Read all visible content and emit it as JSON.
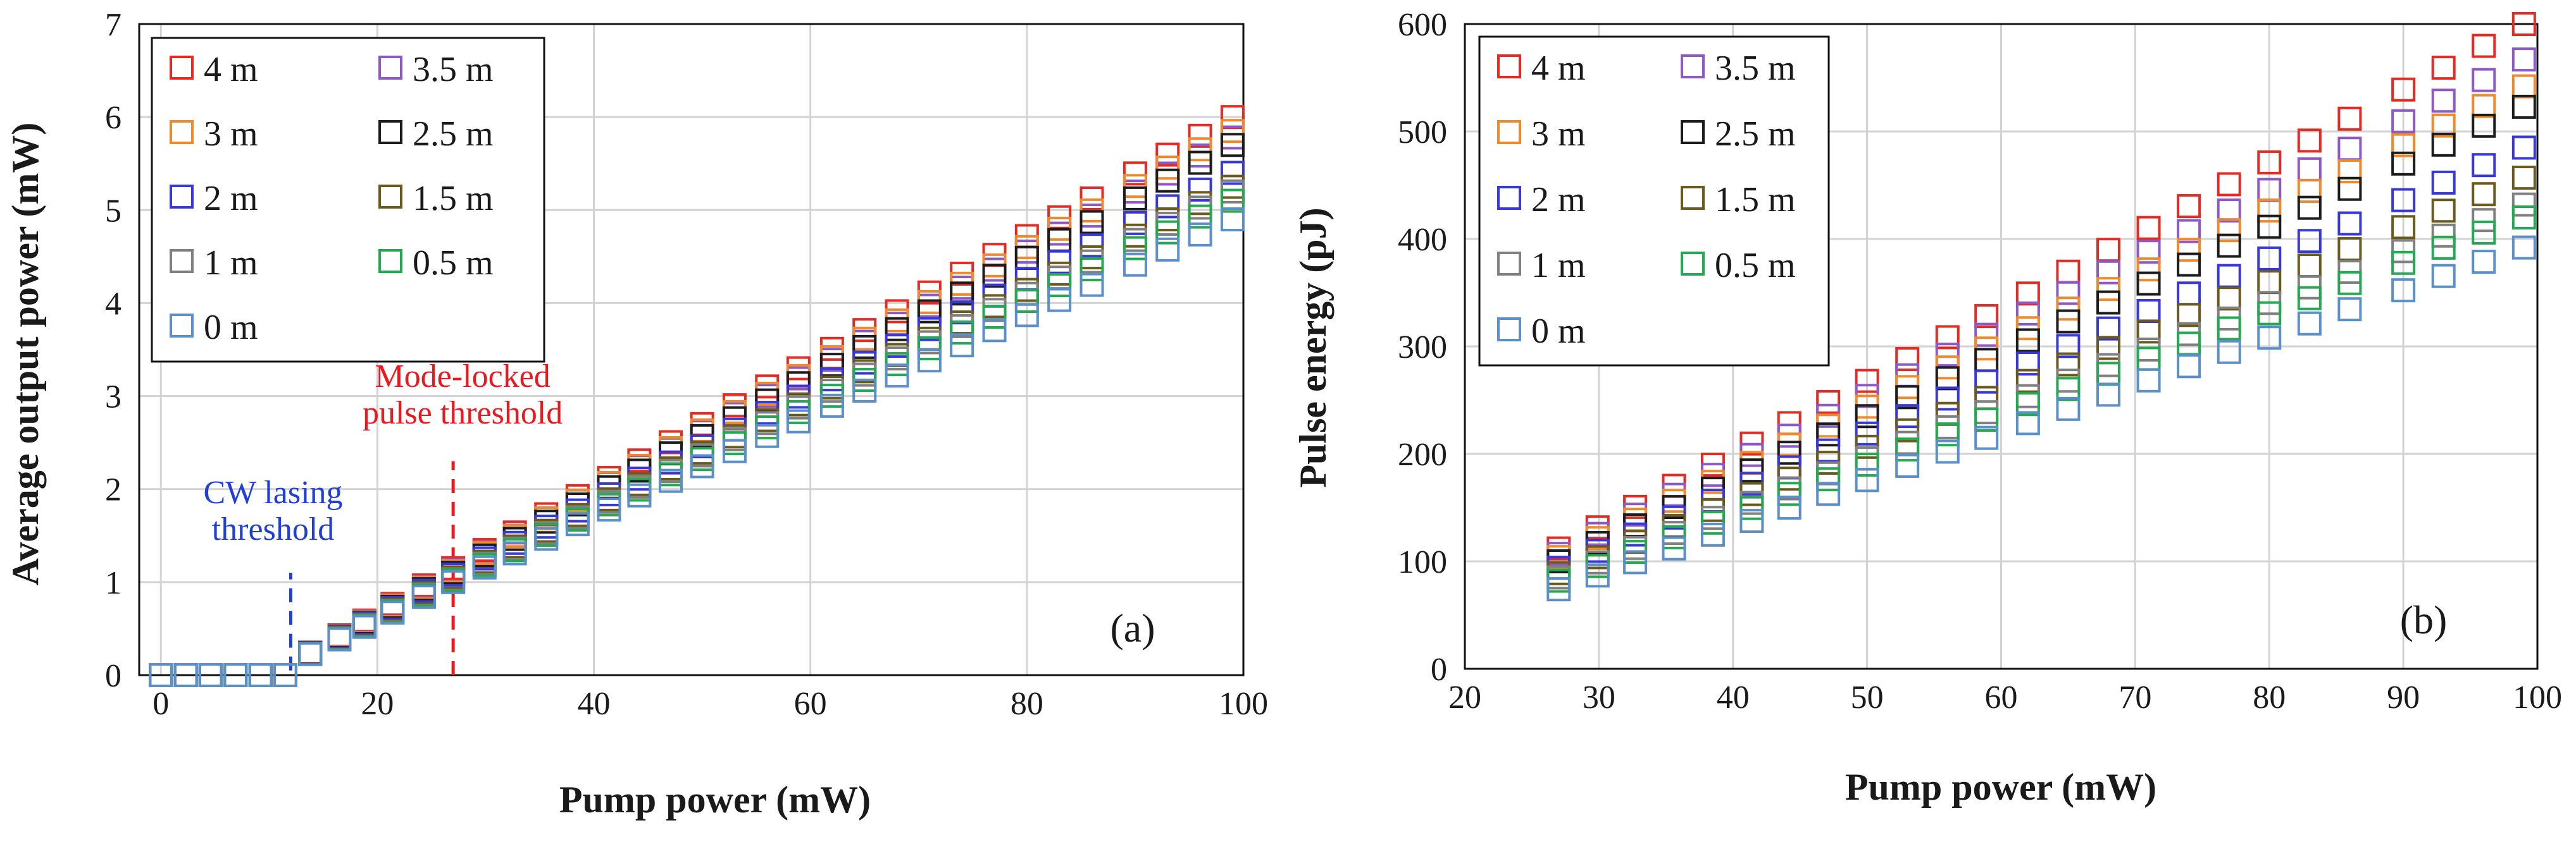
{
  "chart_data": [
    {
      "type": "scatter",
      "panel_label": "(a)",
      "xlabel": "Pump power (mW)",
      "ylabel": "Average output power (mW)",
      "xlim": [
        -2,
        100
      ],
      "ylim": [
        0,
        7
      ],
      "xticks": [
        0,
        20,
        40,
        60,
        80,
        100
      ],
      "xtick_labels": [
        "0",
        "20",
        "40",
        "60",
        "80",
        "100"
      ],
      "yticks": [
        0,
        1,
        2,
        3,
        4,
        5,
        6,
        7
      ],
      "ytick_labels": [
        "0",
        "1",
        "2",
        "3",
        "4",
        "5",
        "6",
        "7"
      ],
      "grid": true,
      "legend_position": "top-left",
      "x": [
        0,
        2.3,
        4.6,
        6.9,
        9.2,
        11.5,
        13.8,
        16.5,
        18.8,
        21.4,
        24.3,
        27.0,
        29.9,
        32.7,
        35.6,
        38.5,
        41.4,
        44.2,
        47.1,
        50.0,
        53.0,
        56.0,
        58.9,
        62.0,
        65.0,
        68.0,
        71.0,
        74.0,
        77.0,
        80.0,
        83.0,
        86.0,
        90.0,
        93.0,
        96.0,
        99.0
      ],
      "threshold_values": {
        "cw_lasing": 12,
        "mode_locked": 27
      },
      "annotations": [
        {
          "text_lines": [
            "CW lasing",
            "threshold"
          ],
          "color": "#1f3fd8",
          "x": 12
        },
        {
          "text_lines": [
            "Mode-locked",
            "pulse threshold"
          ],
          "color": "#e8191f",
          "x": 27
        }
      ],
      "series": [
        {
          "name": "4 m",
          "color": "#e32b24",
          "start": 0.12,
          "slope": 0.0816,
          "ystart": 1.15,
          "yend": 6.0
        },
        {
          "name": "3.5 m",
          "color": "#8e59c4",
          "start": 0.12,
          "slope": 0.0775,
          "ystart": 1.13,
          "yend": 5.78
        },
        {
          "name": "3 m",
          "color": "#ee8a2e",
          "start": 0.12,
          "slope": 0.078,
          "ystart": 1.12,
          "yend": 5.85
        },
        {
          "name": "2.5 m",
          "color": "#1c1c1c",
          "start": 0.12,
          "slope": 0.076,
          "ystart": 1.1,
          "yend": 5.7
        },
        {
          "name": "2 m",
          "color": "#3838d8",
          "start": 0.12,
          "slope": 0.0716,
          "ystart": 1.08,
          "yend": 5.4
        },
        {
          "name": "1.5 m",
          "color": "#6a5a1e",
          "start": 0.12,
          "slope": 0.0702,
          "ystart": 1.05,
          "yend": 5.25
        },
        {
          "name": "1 m",
          "color": "#808080",
          "start": 0.12,
          "slope": 0.0697,
          "ystart": 1.03,
          "yend": 5.2
        },
        {
          "name": "0.5 m",
          "color": "#24a852",
          "start": 0.12,
          "slope": 0.068,
          "ystart": 1.02,
          "yend": 5.1
        },
        {
          "name": "0 m",
          "color": "#5b8fc9",
          "start": 0.12,
          "slope": 0.0663,
          "ystart": 1.0,
          "yend": 4.9
        }
      ]
    },
    {
      "type": "scatter",
      "panel_label": "(b)",
      "xlabel": "Pump power (mW)",
      "ylabel": "Pulse energy (pJ)",
      "xlim": [
        20,
        100
      ],
      "ylim": [
        0,
        600
      ],
      "xticks": [
        20,
        30,
        40,
        50,
        60,
        70,
        80,
        90,
        100
      ],
      "xtick_labels": [
        "20",
        "30",
        "40",
        "50",
        "60",
        "70",
        "80",
        "90",
        "100"
      ],
      "yticks": [
        0,
        100,
        200,
        300,
        400,
        500,
        600
      ],
      "ytick_labels": [
        "0",
        "100",
        "200",
        "300",
        "400",
        "500",
        "600"
      ],
      "grid": true,
      "legend_position": "top-left",
      "x": [
        27.0,
        29.9,
        32.7,
        35.6,
        38.5,
        41.4,
        44.2,
        47.1,
        50.0,
        53.0,
        56.0,
        58.9,
        62.0,
        65.0,
        68.0,
        71.0,
        74.0,
        77.0,
        80.0,
        83.0,
        86.0,
        90.0,
        93.0,
        96.0,
        99.0
      ],
      "series": [
        {
          "name": "4 m",
          "color": "#e32b24",
          "ystart": 112,
          "yend": 600
        },
        {
          "name": "3.5 m",
          "color": "#8e59c4",
          "ystart": 107,
          "yend": 567
        },
        {
          "name": "3 m",
          "color": "#ee8a2e",
          "ystart": 104,
          "yend": 542
        },
        {
          "name": "2.5 m",
          "color": "#1c1c1c",
          "ystart": 100,
          "yend": 523
        },
        {
          "name": "2 m",
          "color": "#3838d8",
          "ystart": 94,
          "yend": 485
        },
        {
          "name": "1.5 m",
          "color": "#6a5a1e",
          "ystart": 89,
          "yend": 457
        },
        {
          "name": "1 m",
          "color": "#808080",
          "ystart": 85,
          "yend": 432
        },
        {
          "name": "0.5 m",
          "color": "#24a852",
          "ystart": 82,
          "yend": 420
        },
        {
          "name": "0 m",
          "color": "#5b8fc9",
          "ystart": 74,
          "yend": 392
        }
      ]
    }
  ]
}
